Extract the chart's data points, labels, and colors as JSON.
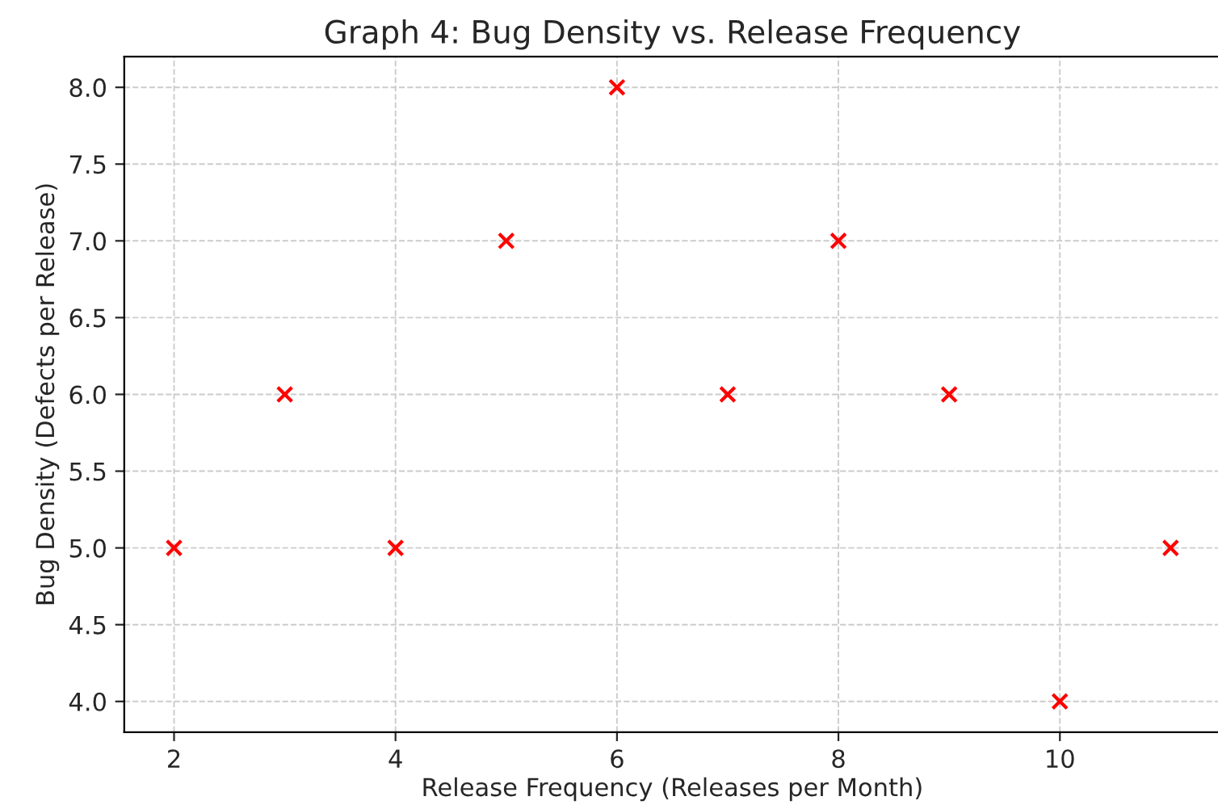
{
  "chart_data": {
    "type": "scatter",
    "title": "Graph 4: Bug Density vs. Release Frequency",
    "xlabel": "Release Frequency (Releases per Month)",
    "ylabel": "Bug Density (Defects per Release)",
    "x": [
      2,
      3,
      4,
      5,
      6,
      7,
      8,
      9,
      10,
      11
    ],
    "series": [
      {
        "color": "#ff0000",
        "values": [
          5,
          6,
          5,
          7,
          8,
          6,
          7,
          6,
          4,
          5
        ]
      }
    ],
    "marker": "cross",
    "grid": true,
    "xlim": [
      1.55,
      11.45
    ],
    "xticks": [
      2,
      4,
      6,
      8,
      10
    ],
    "ylim": [
      3.8,
      8.2
    ],
    "yticks": [
      {
        "value": 4,
        "label": "4.0"
      },
      {
        "value": 4.5,
        "label": "4.5"
      },
      {
        "value": 5,
        "label": "5.0"
      },
      {
        "value": 5.5,
        "label": "5.5"
      },
      {
        "value": 6,
        "label": "6.0"
      },
      {
        "value": 6.5,
        "label": "6.5"
      },
      {
        "value": 7,
        "label": "7.0"
      },
      {
        "value": 7.5,
        "label": "7.5"
      },
      {
        "value": 8,
        "label": "8.0"
      }
    ]
  }
}
